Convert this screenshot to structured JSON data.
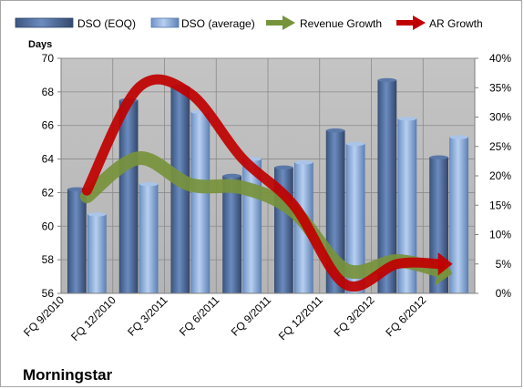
{
  "chart_data": {
    "type": "bar",
    "categories": [
      "FQ 9/2010",
      "FQ 12/2010",
      "FQ 3/2011",
      "FQ 6/2011",
      "FQ 9/2011",
      "FQ 12/2011",
      "FQ 3/2012",
      "FQ 6/2012"
    ],
    "series": [
      {
        "name": "DSO (EOQ)",
        "type": "bar",
        "axis": "left",
        "color": "#4f6d9a",
        "values": [
          62.2,
          67.5,
          68.3,
          63.0,
          63.5,
          65.7,
          68.7,
          64.1
        ]
      },
      {
        "name": "DSO (average)",
        "type": "bar",
        "axis": "left",
        "color": "#8fb1de",
        "values": [
          60.7,
          62.5,
          66.8,
          64.0,
          63.8,
          64.9,
          66.4,
          65.3
        ]
      },
      {
        "name": "Revenue Growth",
        "type": "line",
        "axis": "right",
        "color": "#77933c",
        "values": [
          16.5,
          23.0,
          18.5,
          18.0,
          14.0,
          4.0,
          5.5,
          3.5
        ]
      },
      {
        "name": "AR Growth",
        "type": "line",
        "axis": "right",
        "color": "#c00000",
        "values": [
          17.5,
          35.0,
          34.0,
          23.0,
          15.0,
          1.5,
          5.0,
          5.0
        ]
      }
    ],
    "ylabel": "Days",
    "ylim": [
      56,
      70
    ],
    "yticks": [
      "56",
      "58",
      "60",
      "62",
      "64",
      "66",
      "68",
      "70"
    ],
    "y2lim": [
      0,
      40
    ],
    "y2ticks": [
      "0%",
      "5%",
      "10%",
      "15%",
      "20%",
      "25%",
      "30%",
      "35%",
      "40%"
    ],
    "grid": true,
    "legend": "top",
    "plot_background": "#bfbfbf",
    "source_label": "Morningstar"
  }
}
